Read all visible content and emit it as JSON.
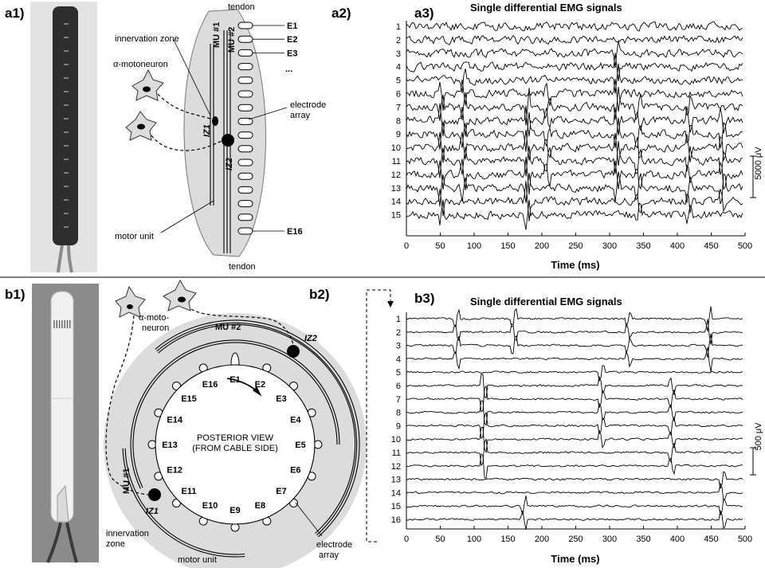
{
  "panel_labels": {
    "a1": "a1)",
    "a2": "a2)",
    "a3": "a3)",
    "b1": "b1)",
    "b2": "b2)",
    "b3": "b3)"
  },
  "a2": {
    "tendon_top": "tendon",
    "tendon_bottom": "tendon",
    "innervation_zone": "innervation zone",
    "motoneuron": "α-motoneuron",
    "electrode_array_1": "electrode",
    "electrode_array_2": "array",
    "motor_unit": "motor unit",
    "mu1": "MU #1",
    "mu2": "MU #2",
    "iz1": "IZ1",
    "iz2": "IZ2",
    "electrodes": [
      "E1",
      "E2",
      "E3",
      "...",
      "E16"
    ]
  },
  "b2": {
    "mu1": "MU #1",
    "mu2": "MU #2",
    "iz1": "IZ1",
    "iz2": "IZ2",
    "motoneuron_1": "α-moto-",
    "motoneuron_2": "neuron",
    "center_1": "POSTERIOR VIEW",
    "center_2": "(FROM CABLE SIDE)",
    "innervation_1": "innervation",
    "innervation_2": "zone",
    "motor_unit": "motor unit",
    "array_1": "electrode",
    "array_2": "array",
    "electrodes": [
      "E1",
      "E2",
      "E3",
      "E4",
      "E5",
      "E6",
      "E7",
      "E8",
      "E9",
      "E10",
      "E11",
      "E12",
      "E13",
      "E14",
      "E15",
      "E16"
    ]
  },
  "a3": {
    "title": "Single differential EMG signals",
    "xlabel": "Time (ms)",
    "xticks": [
      "0",
      "50",
      "100",
      "150",
      "200",
      "250",
      "300",
      "350",
      "400",
      "450",
      "500"
    ],
    "channels": [
      "1",
      "2",
      "3",
      "4",
      "5",
      "6",
      "7",
      "8",
      "9",
      "10",
      "11",
      "12",
      "13",
      "14",
      "15"
    ],
    "scale": "5000 μV"
  },
  "b3": {
    "title": "Single differential EMG signals",
    "xlabel": "Time (ms)",
    "xticks": [
      "0",
      "50",
      "100",
      "150",
      "200",
      "250",
      "300",
      "350",
      "400",
      "450",
      "500"
    ],
    "channels": [
      "1",
      "2",
      "3",
      "4",
      "5",
      "6",
      "7",
      "8",
      "9",
      "10",
      "11",
      "12",
      "13",
      "14",
      "15",
      "16"
    ],
    "scale": "500 μV"
  }
}
